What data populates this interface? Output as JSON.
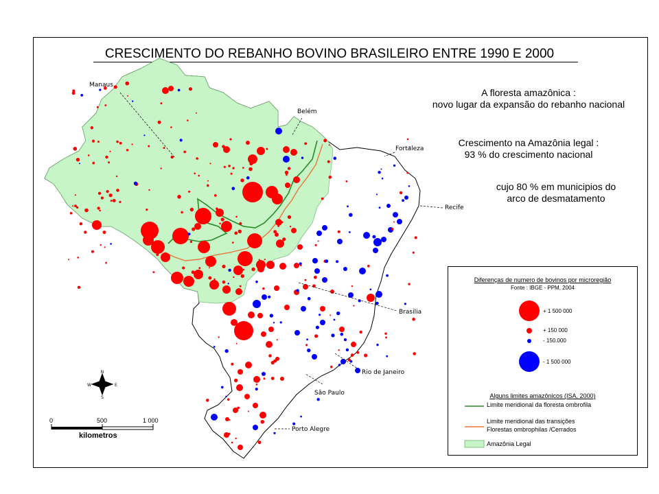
{
  "title": "CRESCIMENTO DO REBANHO BOVINO BRASILEIRO ENTRE 1990 E 2000",
  "annotations": {
    "line1": "A floresta amazônica :",
    "line2": "novo lugar da expansão do rebanho nacional",
    "line3": "Crescimento na Amazônia legal :",
    "line4": "93 % do crescimento nacional",
    "line5": "cujo 80 % em municipios do",
    "line6": "arco de desmatamento"
  },
  "cities": [
    "Manaus",
    "Belém",
    "Fortaleza",
    "Recife",
    "Brasilia",
    "Rio de Janeiro",
    "São Paulo",
    "Porto Alegre"
  ],
  "legend": {
    "title": "Diferenças de numero de bovinos por microregião",
    "source": "Fonte : IBGE - PPM, 2004",
    "classes": [
      "+ 1 500 000",
      "+ 150 000",
      "- 150.000",
      "- 1 500 000"
    ],
    "limits_title": "Alguns limites amazônicos (ISA, 2000)",
    "limit1": "Limite meridional da floresta ombrofila",
    "limit2a": "Limite meridional das transições",
    "limit2b": "Florestas ombrophilas /Cerrados",
    "legal": "Amazônia Legal"
  },
  "compass": {
    "n": "N",
    "s": "S",
    "e": "E",
    "w": "W"
  },
  "scale": {
    "ticks": [
      "0",
      "500",
      "1 000"
    ],
    "unit": "kilometros"
  },
  "colors": {
    "gain": "#ff0000",
    "loss": "#0000ff",
    "amazonia": "#c8f5c8",
    "forest_limit": "#2a8a2a",
    "transition_limit": "#e8773a"
  }
}
